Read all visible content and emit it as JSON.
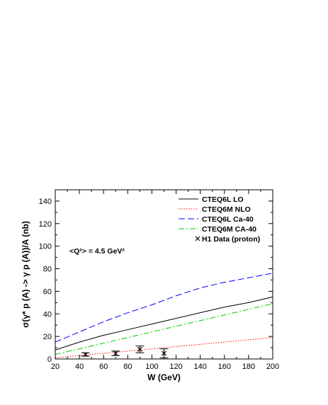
{
  "chart_data": {
    "type": "line",
    "xlabel": "W (GeV)",
    "ylabel": "σ(γ* p (A) -> γ p (A))/A (nb)",
    "xlim": [
      20,
      200
    ],
    "ylim": [
      0,
      150
    ],
    "xticks": [
      20,
      40,
      60,
      80,
      100,
      120,
      140,
      160,
      180,
      200
    ],
    "yticks": [
      0,
      20,
      40,
      60,
      80,
      100,
      120,
      140
    ],
    "annotation": "<Q²> = 4.5 GeV²",
    "legend_position": "top-right",
    "series": [
      {
        "name": "CTEQ6L LO",
        "color": "#000000",
        "dash": "solid",
        "x": [
          20,
          40,
          60,
          80,
          100,
          120,
          140,
          160,
          180,
          200
        ],
        "y": [
          8,
          15,
          21,
          26,
          31,
          36,
          41,
          46,
          50,
          55
        ]
      },
      {
        "name": "CTEQ6M NLO",
        "color": "#ff0000",
        "dash": "dotted",
        "x": [
          20,
          40,
          60,
          80,
          100,
          120,
          140,
          160,
          180,
          200
        ],
        "y": [
          1,
          3,
          5,
          7,
          9,
          11,
          13,
          15,
          17,
          19
        ]
      },
      {
        "name": "CTEQ6L Ca-40",
        "color": "#0000ff",
        "dash": "dashed",
        "x": [
          20,
          40,
          60,
          80,
          100,
          120,
          140,
          160,
          180,
          200
        ],
        "y": [
          15,
          24,
          33,
          41,
          48,
          56,
          63,
          68,
          72,
          76
        ]
      },
      {
        "name": "CTEQ6M CA-40",
        "color": "#00cc00",
        "dash": "dashdot",
        "x": [
          20,
          40,
          60,
          80,
          100,
          120,
          140,
          160,
          180,
          200
        ],
        "y": [
          4,
          9,
          14,
          19,
          24,
          29,
          34,
          39,
          44,
          49
        ]
      },
      {
        "name": "H1 Data (proton)",
        "color": "#000000",
        "marker": "x",
        "x": [
          45,
          70,
          90,
          110
        ],
        "y": [
          4,
          5,
          8.5,
          5
        ],
        "yerr": [
          1.5,
          2,
          3,
          4
        ]
      }
    ]
  }
}
